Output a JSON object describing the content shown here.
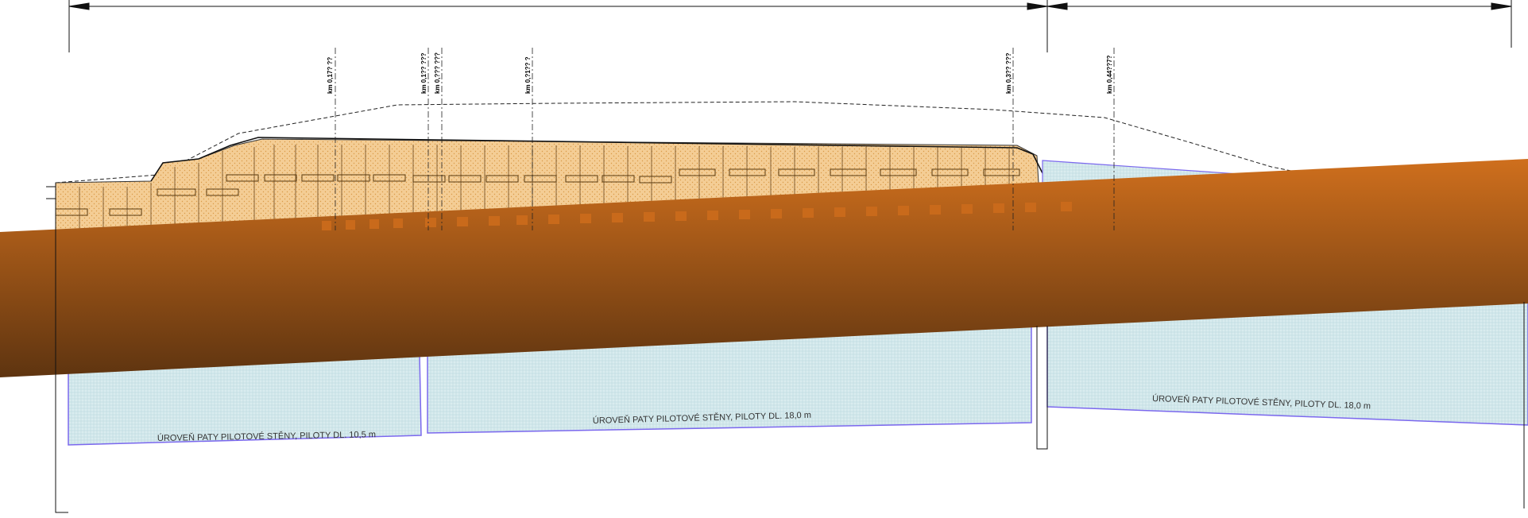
{
  "drawing": {
    "dimensions": [
      "",
      ""
    ],
    "stations": [
      "km 0,17? ??",
      "km 0,1?? ???",
      "km 0,??? ???",
      "km 0,?1?? ?",
      "km 0,3?? ???",
      "km 0,44??7?"
    ],
    "pile_notes": [
      "ÚROVEŇ PATY PILOTOVÉ STĚNY, PILOTY DL. 10,5 m",
      "ÚROVEŇ PATY PILOTOVÉ STĚNY, PILOTY DL. 18,0 m",
      "ÚROVEŇ PATY PILOTOVÉ STĚNY, PILOTY DL. 18,0 m"
    ],
    "colors": {
      "terrain_top": "#c96a1b",
      "terrain_bottom": "#6a3a10",
      "fill_body": "#f3c98a",
      "pile_wall": "#d6e9ec",
      "wall_outline": "#7b68ee",
      "line": "#111111"
    }
  }
}
